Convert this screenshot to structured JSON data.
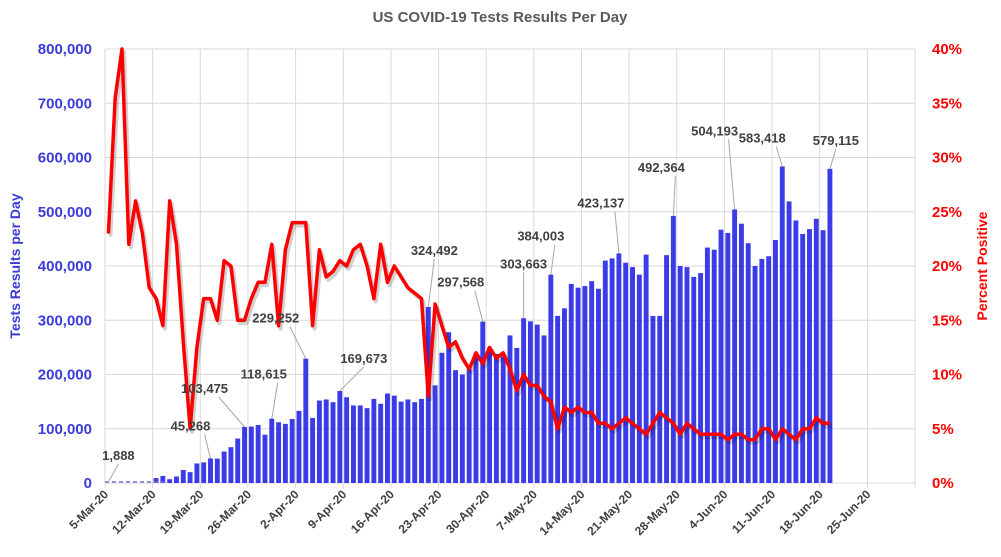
{
  "chart_data": {
    "type": "bar+line",
    "title": "US COVID-19 Tests Results Per Day",
    "xlabel": "",
    "ylabel_left": "Tests Results per Day",
    "ylabel_right": "Percent Positive",
    "ylim_left": [
      0,
      800000
    ],
    "ylim_right": [
      0,
      40
    ],
    "grid": true,
    "legend": "none",
    "colors": {
      "bars": "#3b3be8",
      "line": "#ff0000",
      "title": "#595959",
      "left_axis": "#3b3bd8",
      "right_axis": "#ff0000"
    },
    "yticks_left": [
      "0",
      "100,000",
      "200,000",
      "300,000",
      "400,000",
      "500,000",
      "600,000",
      "700,000",
      "800,000"
    ],
    "yticks_right": [
      "0%",
      "5%",
      "10%",
      "15%",
      "20%",
      "25%",
      "30%",
      "35%",
      "40%"
    ],
    "xticks": [
      "5-Mar-20",
      "12-Mar-20",
      "19-Mar-20",
      "26-Mar-20",
      "2-Apr-20",
      "9-Apr-20",
      "16-Apr-20",
      "23-Apr-20",
      "30-Apr-20",
      "7-May-20",
      "14-May-20",
      "21-May-20",
      "28-May-20",
      "4-Jun-20",
      "11-Jun-20",
      "18-Jun-20",
      "25-Jun-20"
    ],
    "x_start": "5-Mar-20",
    "x_range_days": [
      0,
      119
    ],
    "series": [
      {
        "name": "Tests Results per Day",
        "type": "bar",
        "axis": "left",
        "values": [
          1888,
          2000,
          1500,
          2500,
          3000,
          5000,
          6000,
          9000,
          13000,
          7000,
          12000,
          24000,
          20000,
          36000,
          38000,
          45268,
          45000,
          58000,
          66000,
          82000,
          103475,
          104000,
          107000,
          89000,
          118615,
          112000,
          109000,
          118000,
          133000,
          229252,
          120000,
          152000,
          154000,
          149000,
          169673,
          158000,
          143000,
          143000,
          138000,
          155000,
          146000,
          165000,
          161000,
          150000,
          154000,
          149000,
          155000,
          324492,
          180000,
          240000,
          278000,
          208000,
          200000,
          210000,
          240000,
          297568,
          250000,
          238000,
          233000,
          272000,
          249000,
          303663,
          298000,
          292000,
          272000,
          384003,
          308000,
          322000,
          367000,
          360000,
          363000,
          372000,
          358000,
          410000,
          414000,
          423137,
          406000,
          398000,
          384000,
          421000,
          308000,
          308000,
          420000,
          492364,
          400000,
          398000,
          380000,
          387000,
          434000,
          430000,
          467000,
          461000,
          504193,
          478000,
          442000,
          400000,
          413000,
          418000,
          448000,
          583418,
          519000,
          484000,
          459000,
          468000,
          487000,
          466000,
          579115
        ]
      },
      {
        "name": "Percent Positive",
        "type": "line",
        "axis": "right",
        "values": [
          23.0,
          35.5,
          40.0,
          22.0,
          26.0,
          23.0,
          18.0,
          17.0,
          14.5,
          26.0,
          22.0,
          13.0,
          5.0,
          12.5,
          17.0,
          17.0,
          15.0,
          20.5,
          20.0,
          15.0,
          15.0,
          17.0,
          18.5,
          18.5,
          22.0,
          14.5,
          21.5,
          24.0,
          24.0,
          24.0,
          14.5,
          21.5,
          19.0,
          19.5,
          20.5,
          20.0,
          21.5,
          22.0,
          20.0,
          17.0,
          22.0,
          18.5,
          20.0,
          19.0,
          18.0,
          17.5,
          17.0,
          8.0,
          16.5,
          14.5,
          12.5,
          13.0,
          11.5,
          10.5,
          12.0,
          11.0,
          12.5,
          11.5,
          12.0,
          10.5,
          8.5,
          10.0,
          9.0,
          9.0,
          8.0,
          7.5,
          5.0,
          7.0,
          6.5,
          7.0,
          6.5,
          6.5,
          5.5,
          5.5,
          5.0,
          5.5,
          6.0,
          5.5,
          5.0,
          4.5,
          5.5,
          6.5,
          6.0,
          5.5,
          4.5,
          5.5,
          5.0,
          4.5,
          4.5,
          4.5,
          4.5,
          4.0,
          4.5,
          4.5,
          4.0,
          4.0,
          5.0,
          5.0,
          4.0,
          5.0,
          4.5,
          4.0,
          5.0,
          5.0,
          6.0,
          5.5,
          5.5
        ]
      }
    ],
    "data_labels": [
      {
        "day": 0,
        "value": 1888,
        "text": "1,888"
      },
      {
        "day": 15,
        "value": 45268,
        "text": "45,268"
      },
      {
        "day": 20,
        "value": 103475,
        "text": "103,475"
      },
      {
        "day": 24,
        "value": 118615,
        "text": "118,615"
      },
      {
        "day": 29,
        "value": 229252,
        "text": "229,252"
      },
      {
        "day": 34,
        "value": 169673,
        "text": "169,673"
      },
      {
        "day": 47,
        "value": 324492,
        "text": "324,492"
      },
      {
        "day": 55,
        "value": 297568,
        "text": "297,568"
      },
      {
        "day": 61,
        "value": 303663,
        "text": "303,663"
      },
      {
        "day": 65,
        "value": 384003,
        "text": "384,003"
      },
      {
        "day": 75,
        "value": 423137,
        "text": "423,137"
      },
      {
        "day": 83,
        "value": 492364,
        "text": "492,364"
      },
      {
        "day": 92,
        "value": 504193,
        "text": "504,193"
      },
      {
        "day": 99,
        "value": 583418,
        "text": "583,418"
      },
      {
        "day": 106,
        "value": 579115,
        "text": "579,115"
      }
    ]
  }
}
